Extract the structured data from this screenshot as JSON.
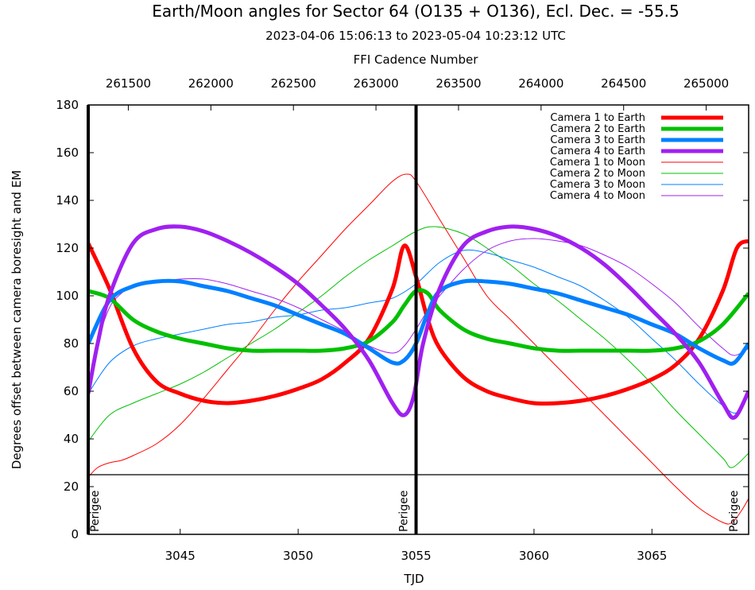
{
  "chart_data": {
    "type": "line",
    "title": "Earth/Moon angles for Sector 64 (O135 + O136), Ecl. Dec. = -55.5",
    "subtitle": "2023-04-06 15:06:13 to 2023-05-04 10:23:12 UTC",
    "xlabel": "TJD",
    "ylabel": "Degrees offset between camera boresight and EM",
    "x2label": "FFI Cadence Number",
    "xlim": [
      3041.1,
      3069.1
    ],
    "ylim": [
      0,
      180
    ],
    "x_ticks": [
      3045,
      3050,
      3055,
      3060,
      3065
    ],
    "y_ticks": [
      0,
      20,
      40,
      60,
      80,
      100,
      120,
      140,
      160,
      180
    ],
    "x2_ticks": [
      261500,
      262000,
      262500,
      263000,
      263500,
      264000,
      264500,
      265000
    ],
    "x2_tick_tjd": [
      3042.8,
      3046.3,
      3049.8,
      3053.3,
      3056.8,
      3060.3,
      3063.8,
      3067.3
    ],
    "legend_position": "top-right",
    "grid": false,
    "orbit_boundaries_tjd": [
      3041.1,
      3055.0
    ],
    "horizontal_line_y": 25,
    "annotations": [
      {
        "text": "Perigee",
        "x": 3041.4,
        "y": 1
      },
      {
        "text": "Perigee",
        "x": 3054.5,
        "y": 1
      },
      {
        "text": "Perigee",
        "x": 3068.5,
        "y": 1
      }
    ],
    "series": [
      {
        "name": "Camera 1 to Earth",
        "color": "#ff0000",
        "width": 5,
        "x": [
          3041.1,
          3042,
          3043,
          3044,
          3045,
          3046,
          3047,
          3048,
          3049,
          3050,
          3051,
          3052,
          3053,
          3054,
          3054.5,
          3055,
          3055.5,
          3056,
          3057,
          3058,
          3059,
          3060,
          3061,
          3062,
          3063,
          3064,
          3065,
          3066,
          3067,
          3068,
          3068.6,
          3069.1
        ],
        "y": [
          122,
          103,
          78,
          64,
          59,
          56,
          55,
          56,
          58,
          61,
          65,
          72,
          82,
          103,
          121,
          108,
          90,
          78,
          66,
          60,
          57,
          55,
          55,
          56,
          58,
          61,
          65,
          71,
          82,
          102,
          120,
          123
        ]
      },
      {
        "name": "Camera 2 to Earth",
        "color": "#00c000",
        "width": 5,
        "x": [
          3041.1,
          3042,
          3043,
          3044,
          3045,
          3046,
          3047,
          3048,
          3049,
          3050,
          3051,
          3052,
          3053,
          3054,
          3054.5,
          3055,
          3055.5,
          3056,
          3057,
          3058,
          3059,
          3060,
          3061,
          3062,
          3063,
          3064,
          3065,
          3066,
          3067,
          3068,
          3069.1
        ],
        "y": [
          102,
          99,
          90,
          85,
          82,
          80,
          78,
          77,
          77,
          77,
          77,
          78,
          81,
          89,
          96,
          102,
          101,
          94,
          86,
          82,
          80,
          78,
          77,
          77,
          77,
          77,
          77,
          78,
          81,
          88,
          101
        ]
      },
      {
        "name": "Camera 3 to Earth",
        "color": "#0080ff",
        "width": 5,
        "x": [
          3041.1,
          3042,
          3043,
          3044,
          3045,
          3046,
          3047,
          3048,
          3049,
          3050,
          3051,
          3052,
          3053,
          3054,
          3054.5,
          3055,
          3055.5,
          3056,
          3057,
          3058,
          3059,
          3060,
          3061,
          3062,
          3063,
          3064,
          3065,
          3066,
          3067,
          3068,
          3068.5,
          3069.1
        ],
        "y": [
          80,
          98,
          104,
          106,
          106,
          104,
          102,
          99,
          96,
          92,
          88,
          84,
          78,
          72,
          73,
          80,
          93,
          102,
          106,
          106,
          105,
          103,
          101,
          98,
          95,
          92,
          88,
          84,
          78,
          73,
          72,
          80
        ]
      },
      {
        "name": "Camera 4 to Earth",
        "color": "#a020f0",
        "width": 5,
        "x": [
          3041.1,
          3041.5,
          3042,
          3043,
          3044,
          3045,
          3046,
          3047,
          3048,
          3049,
          3050,
          3051,
          3052,
          3053,
          3054,
          3054.5,
          3054.9,
          3055.3,
          3056,
          3057,
          3058,
          3059,
          3060,
          3061,
          3062,
          3063,
          3064,
          3065,
          3066,
          3067,
          3068,
          3068.5,
          3069.1
        ],
        "y": [
          59,
          80,
          100,
          122,
          128,
          129,
          127,
          123,
          118,
          112,
          105,
          96,
          86,
          73,
          55,
          50,
          58,
          80,
          103,
          121,
          127,
          129,
          128,
          125,
          120,
          113,
          104,
          94,
          84,
          72,
          55,
          49,
          60
        ]
      },
      {
        "name": "Camera 1 to Moon",
        "color": "#ff0000",
        "width": 1,
        "x": [
          3041.1,
          3041.5,
          3042,
          3042.5,
          3043,
          3044,
          3045,
          3046,
          3047,
          3048,
          3049,
          3050,
          3051,
          3052,
          3053,
          3054,
          3054.6,
          3055,
          3056,
          3057,
          3058,
          3059,
          3060,
          3061,
          3062,
          3063,
          3064,
          3065,
          3066,
          3067,
          3068,
          3068.4,
          3068.8,
          3069.1
        ],
        "y": [
          24,
          28,
          30,
          31,
          33,
          38,
          46,
          57,
          69,
          81,
          94,
          106,
          117,
          128,
          138,
          148,
          151,
          148,
          132,
          116,
          100,
          90,
          80,
          70,
          60,
          50,
          40,
          30,
          20,
          11,
          5,
          5,
          10,
          15
        ]
      },
      {
        "name": "Camera 2 to Moon",
        "color": "#00c000",
        "width": 1,
        "x": [
          3041.1,
          3042,
          3043,
          3044,
          3045,
          3046,
          3047,
          3048,
          3049,
          3050,
          3051,
          3052,
          3053,
          3054,
          3055,
          3055.8,
          3057,
          3058,
          3059,
          3060,
          3061,
          3062,
          3063,
          3064,
          3065,
          3066,
          3067,
          3068,
          3068.4,
          3069.1
        ],
        "y": [
          39,
          50,
          55,
          59,
          63,
          68,
          74,
          80,
          86,
          93,
          100,
          108,
          115,
          121,
          127,
          129,
          126,
          120,
          113,
          105,
          98,
          90,
          82,
          73,
          63,
          52,
          42,
          32,
          28,
          34
        ]
      },
      {
        "name": "Camera 3 to Moon",
        "color": "#0080ff",
        "width": 1,
        "x": [
          3041.1,
          3042,
          3043,
          3044,
          3045,
          3046,
          3047,
          3048,
          3049,
          3050,
          3051,
          3052,
          3053,
          3054,
          3055,
          3056,
          3057,
          3058,
          3059,
          3060,
          3061,
          3062,
          3063,
          3064,
          3065,
          3066,
          3067,
          3068,
          3068.6,
          3069.1
        ],
        "y": [
          59,
          72,
          79,
          82,
          84,
          86,
          88,
          89,
          91,
          92,
          94,
          95,
          97,
          99,
          105,
          114,
          119,
          118,
          115,
          112,
          108,
          104,
          98,
          91,
          82,
          73,
          63,
          54,
          51,
          59
        ]
      },
      {
        "name": "Camera 4 to Moon",
        "color": "#a020f0",
        "width": 1,
        "x": [
          3041.1,
          3041.5,
          3042,
          3042.5,
          3043,
          3044,
          3045,
          3046,
          3047,
          3048,
          3049,
          3050,
          3051,
          3052,
          3053,
          3054,
          3054.5,
          3055,
          3055.5,
          3056,
          3057,
          3058,
          3059,
          3060,
          3061,
          3062,
          3063,
          3064,
          3065,
          3066,
          3067,
          3068,
          3068.5,
          3069.1
        ],
        "y": [
          58,
          80,
          95,
          101,
          104,
          106,
          107,
          107,
          105,
          102,
          99,
          95,
          90,
          85,
          79,
          76,
          79,
          86,
          94,
          100,
          111,
          119,
          123,
          124,
          123,
          121,
          117,
          112,
          105,
          97,
          87,
          78,
          75,
          78
        ]
      }
    ]
  }
}
